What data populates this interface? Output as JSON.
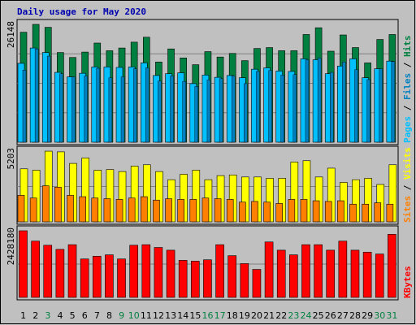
{
  "title": "Daily usage for May 2020",
  "colors": {
    "background": "#c0c0c0",
    "hits": "#008040",
    "files": "#0080c0",
    "pages": "#00c0ff",
    "visits": "#ffff00",
    "sites": "#ff8000",
    "kbytes": "#ff0000",
    "title": "#0000b0",
    "weekend_day": "#008040"
  },
  "chart_data": [
    {
      "type": "bar",
      "id": "hits-files-pages",
      "ymax_label": "26148",
      "legend": [
        {
          "name": "Pages",
          "color": "#00c0ff"
        },
        {
          "name": "Files",
          "color": "#0080c0"
        },
        {
          "name": "Hits",
          "color": "#008040"
        }
      ],
      "ylim": [
        0,
        26148
      ],
      "categories": [
        "1",
        "2",
        "3",
        "4",
        "5",
        "6",
        "7",
        "8",
        "9",
        "10",
        "11",
        "12",
        "13",
        "14",
        "15",
        "16",
        "17",
        "18",
        "19",
        "20",
        "21",
        "22",
        "23",
        "24",
        "25",
        "26",
        "27",
        "28",
        "29",
        "30",
        "31"
      ],
      "series": [
        {
          "name": "Hits",
          "values": [
            24400,
            26148,
            25500,
            19900,
            18800,
            20000,
            22000,
            20300,
            20900,
            22200,
            23300,
            17800,
            20700,
            18700,
            17200,
            20100,
            18900,
            19700,
            18100,
            20800,
            21000,
            20300,
            20300,
            23900,
            25400,
            20200,
            23800,
            21000,
            17600,
            22800,
            23900
          ]
        },
        {
          "name": "Files",
          "values": [
            16000,
            20700,
            19100,
            15200,
            14500,
            14700,
            16400,
            14300,
            14500,
            16300,
            16500,
            13600,
            14700,
            13500,
            12400,
            13800,
            14100,
            14700,
            13000,
            15700,
            15900,
            14900,
            15000,
            18300,
            18700,
            15500,
            17800,
            16100,
            13900,
            16300,
            17900
          ]
        },
        {
          "name": "Pages",
          "values": [
            17500,
            20900,
            19900,
            15500,
            14500,
            15300,
            16700,
            16700,
            16600,
            16700,
            17600,
            14800,
            15200,
            15400,
            13000,
            14900,
            14400,
            14800,
            14300,
            16200,
            16500,
            15800,
            15700,
            18500,
            18300,
            15200,
            16900,
            18500,
            14300,
            16300,
            18000
          ]
        }
      ]
    },
    {
      "type": "bar",
      "id": "visits-sites",
      "ymax_label": "5203",
      "legend": [
        {
          "name": "Sites",
          "color": "#ff8000"
        },
        {
          "name": "Visits",
          "color": "#ffff00"
        }
      ],
      "ylim": [
        0,
        5203
      ],
      "categories": [
        "1",
        "2",
        "3",
        "4",
        "5",
        "6",
        "7",
        "8",
        "9",
        "10",
        "11",
        "12",
        "13",
        "14",
        "15",
        "16",
        "17",
        "18",
        "19",
        "20",
        "21",
        "22",
        "23",
        "24",
        "25",
        "26",
        "27",
        "28",
        "29",
        "30",
        "31"
      ],
      "series": [
        {
          "name": "Visits",
          "values": [
            3900,
            3800,
            5200,
            5150,
            4300,
            4700,
            3800,
            3850,
            3700,
            4100,
            4200,
            3700,
            3100,
            3500,
            3800,
            3100,
            3400,
            3450,
            3300,
            3300,
            3200,
            3200,
            4400,
            4500,
            3300,
            3950,
            2900,
            3100,
            3200,
            2750,
            4200
          ]
        },
        {
          "name": "Sites",
          "values": [
            1950,
            1750,
            2650,
            2550,
            1950,
            1850,
            1750,
            1700,
            1650,
            1750,
            1850,
            1600,
            1700,
            1650,
            1650,
            1750,
            1700,
            1650,
            1450,
            1500,
            1450,
            1350,
            1650,
            1650,
            1550,
            1500,
            1550,
            1300,
            1300,
            1400,
            1300
          ]
        }
      ]
    },
    {
      "type": "bar",
      "id": "kbytes",
      "ymax_label": "2428180",
      "legend": [
        {
          "name": "KBytes",
          "color": "#ff0000"
        }
      ],
      "ylim": [
        0,
        2428180
      ],
      "categories": [
        "1",
        "2",
        "3",
        "4",
        "5",
        "6",
        "7",
        "8",
        "9",
        "10",
        "11",
        "12",
        "13",
        "14",
        "15",
        "16",
        "17",
        "18",
        "19",
        "20",
        "21",
        "22",
        "23",
        "24",
        "25",
        "26",
        "27",
        "28",
        "29",
        "30",
        "31"
      ],
      "series": [
        {
          "name": "KBytes",
          "values": [
            2428180,
            2050000,
            1900000,
            1750000,
            1920000,
            1400000,
            1500000,
            1550000,
            1400000,
            1900000,
            1920000,
            1820000,
            1720000,
            1350000,
            1320000,
            1370000,
            1920000,
            1520000,
            1230000,
            1020000,
            2020000,
            1720000,
            1550000,
            1920000,
            1920000,
            1720000,
            2050000,
            1720000,
            1650000,
            1580000,
            2300000
          ]
        }
      ]
    }
  ],
  "x_labels": [
    {
      "text": "1",
      "weekend": false
    },
    {
      "text": "2",
      "weekend": false
    },
    {
      "text": "3",
      "weekend": true
    },
    {
      "text": "4",
      "weekend": false
    },
    {
      "text": "5",
      "weekend": false
    },
    {
      "text": "6",
      "weekend": false
    },
    {
      "text": "7",
      "weekend": false
    },
    {
      "text": "8",
      "weekend": false
    },
    {
      "text": "9",
      "weekend": true
    },
    {
      "text": "10",
      "weekend": true
    },
    {
      "text": "11",
      "weekend": false
    },
    {
      "text": "12",
      "weekend": false
    },
    {
      "text": "13",
      "weekend": false
    },
    {
      "text": "14",
      "weekend": false
    },
    {
      "text": "15",
      "weekend": false
    },
    {
      "text": "16",
      "weekend": true
    },
    {
      "text": "17",
      "weekend": true
    },
    {
      "text": "18",
      "weekend": false
    },
    {
      "text": "19",
      "weekend": false
    },
    {
      "text": "20",
      "weekend": false
    },
    {
      "text": "21",
      "weekend": false
    },
    {
      "text": "22",
      "weekend": false
    },
    {
      "text": "23",
      "weekend": true
    },
    {
      "text": "24",
      "weekend": true
    },
    {
      "text": "25",
      "weekend": false
    },
    {
      "text": "26",
      "weekend": false
    },
    {
      "text": "27",
      "weekend": false
    },
    {
      "text": "28",
      "weekend": false
    },
    {
      "text": "29",
      "weekend": false
    },
    {
      "text": "30",
      "weekend": true
    },
    {
      "text": "31",
      "weekend": true
    }
  ]
}
